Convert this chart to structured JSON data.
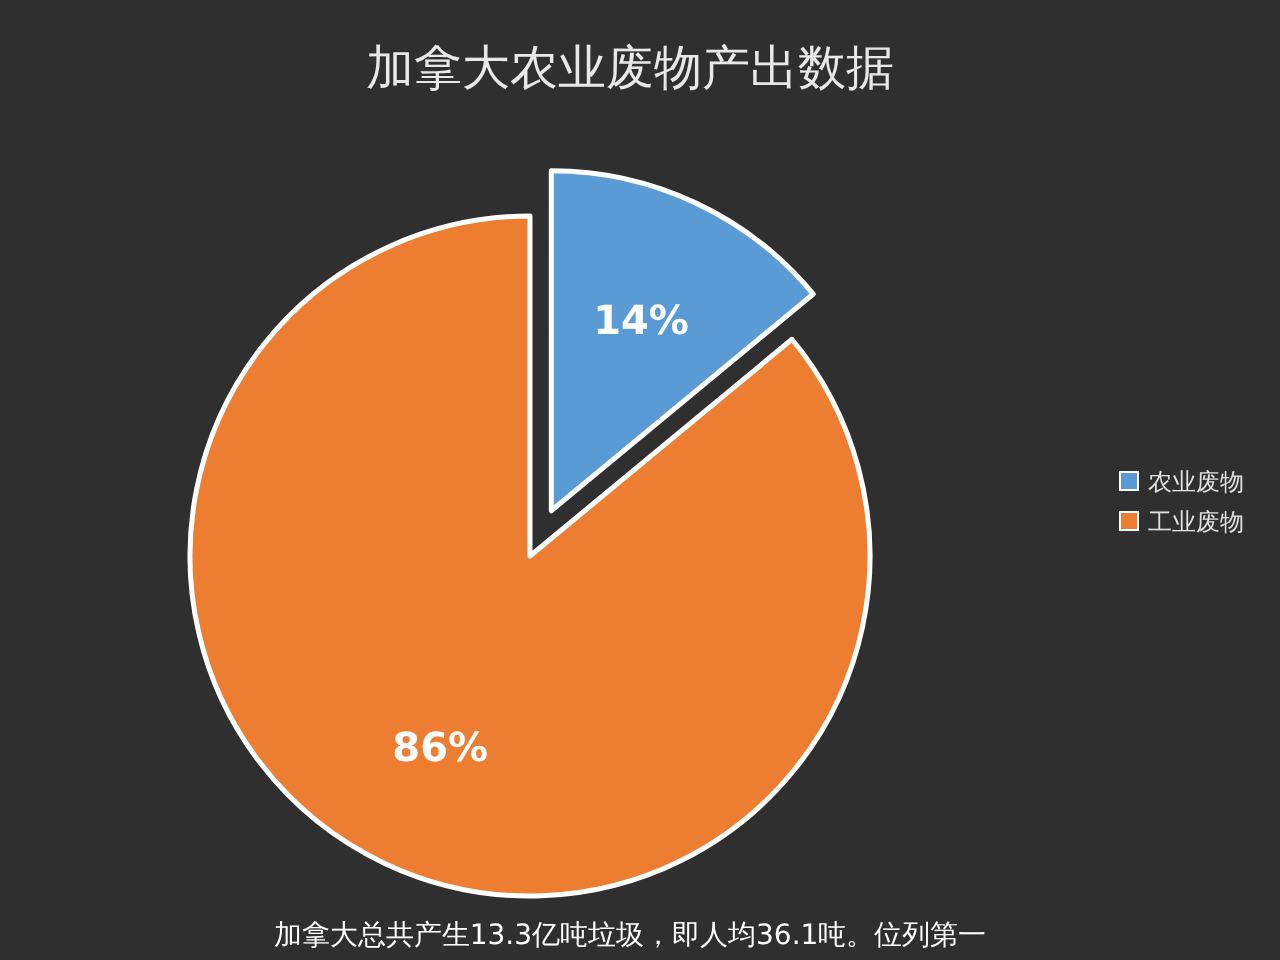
{
  "chart_data": {
    "type": "pie",
    "title": "加拿大农业废物产出数据",
    "categories": [
      "农业废物",
      "工业废物"
    ],
    "values": [
      14,
      86
    ],
    "colors": [
      "#5b9bd5",
      "#ed7d31"
    ],
    "value_labels": [
      "14%",
      "86%"
    ],
    "legend": "right",
    "annotations": [
      "加拿大总共产生13.3亿吨垃圾，即人均36.1吨。位列第一"
    ]
  }
}
